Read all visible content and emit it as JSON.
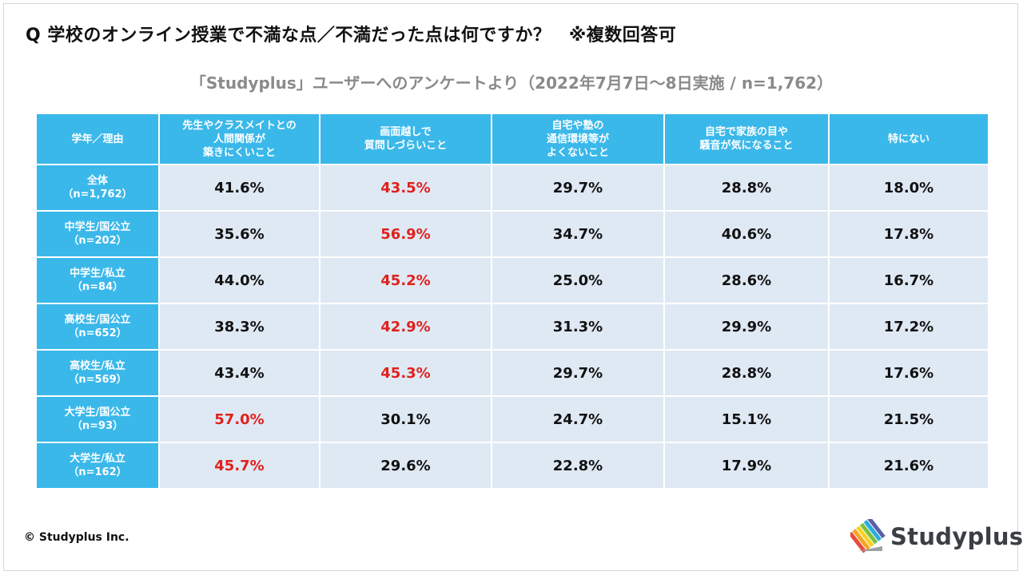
{
  "question": "Q 学校のオンライン授業で不満な点／不満だった点は何ですか？　※複数回答可",
  "subtitle": "「Studyplus」ユーザーへのアンケートより（2022年7月7日～8日実施 / n=1,762）",
  "colors": {
    "header_bg": "#3ab8ea",
    "cell_bg": "#dfe9f4",
    "highlight": "#e0211d",
    "text": "#111111"
  },
  "chart_data": {
    "type": "table",
    "title": "Q 学校のオンライン授業で不満な点／不満だった点は何ですか？　※複数回答可",
    "corner_header": "学年／理由",
    "columns": [
      [
        "先生やクラスメイトとの",
        "人間関係が",
        "築きにくいこと"
      ],
      [
        "画面越しで",
        "質問しづらいこと"
      ],
      [
        "自宅や塾の",
        "通信環境等が",
        "よくないこと"
      ],
      [
        "自宅で家族の目や",
        "騒音が気になること"
      ],
      [
        "特にない"
      ]
    ],
    "rows": [
      {
        "label": "全体",
        "n": "（n=1,762）",
        "values": [
          "41.6%",
          "43.5%",
          "29.7%",
          "28.8%",
          "18.0%"
        ],
        "highlight_index": 1
      },
      {
        "label": "中学生/国公立",
        "n": "（n=202）",
        "values": [
          "35.6%",
          "56.9%",
          "34.7%",
          "40.6%",
          "17.8%"
        ],
        "highlight_index": 1
      },
      {
        "label": "中学生/私立",
        "n": "（n=84）",
        "values": [
          "44.0%",
          "45.2%",
          "25.0%",
          "28.6%",
          "16.7%"
        ],
        "highlight_index": 1
      },
      {
        "label": "高校生/国公立",
        "n": "（n=652）",
        "values": [
          "38.3%",
          "42.9%",
          "31.3%",
          "29.9%",
          "17.2%"
        ],
        "highlight_index": 1
      },
      {
        "label": "高校生/私立",
        "n": "（n=569）",
        "values": [
          "43.4%",
          "45.3%",
          "29.7%",
          "28.8%",
          "17.6%"
        ],
        "highlight_index": 1
      },
      {
        "label": "大学生/国公立",
        "n": "（n=93）",
        "values": [
          "57.0%",
          "30.1%",
          "24.7%",
          "15.1%",
          "21.5%"
        ],
        "highlight_index": 0
      },
      {
        "label": "大学生/私立",
        "n": "（n=162）",
        "values": [
          "45.7%",
          "29.6%",
          "22.8%",
          "17.9%",
          "21.6%"
        ],
        "highlight_index": 0
      }
    ]
  },
  "footer": {
    "copyright": "© Studyplus Inc.",
    "logo_text": "Studyplus",
    "logo_icon": "studyplus-logo-icon"
  }
}
